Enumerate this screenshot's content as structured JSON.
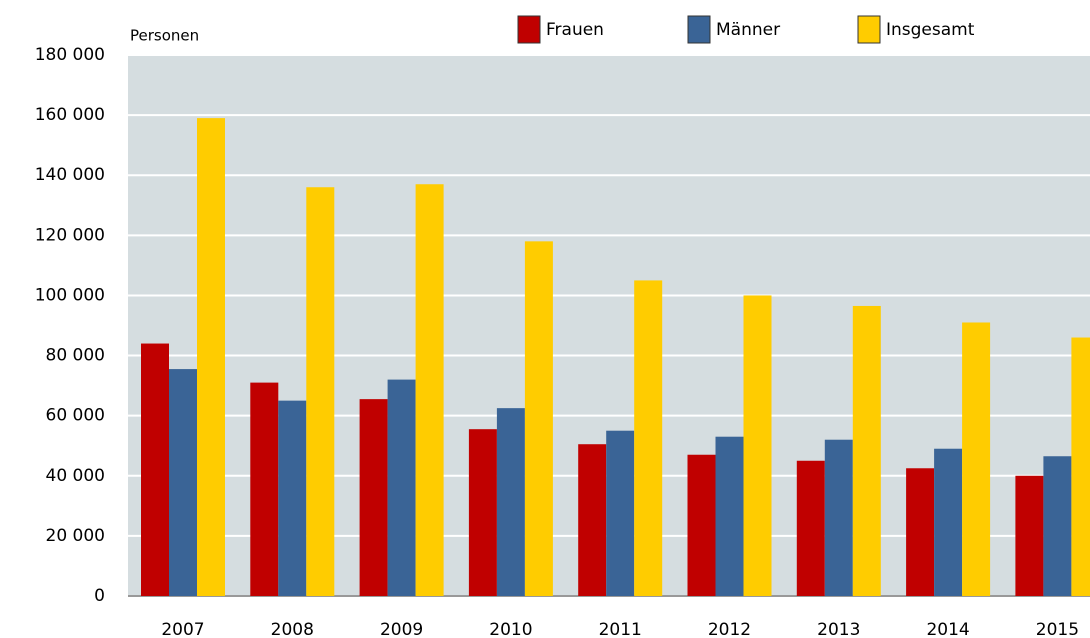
{
  "chart_data": {
    "type": "bar",
    "y_axis_label": "Personen",
    "categories": [
      "2007",
      "2008",
      "2009",
      "2010",
      "2011",
      "2012",
      "2013",
      "2014",
      "2015"
    ],
    "series": [
      {
        "name": "Frauen",
        "color": "#c00000",
        "values": [
          84000,
          71000,
          65500,
          55500,
          50500,
          47000,
          45000,
          42500,
          40000
        ]
      },
      {
        "name": "Männer",
        "color": "#3a6496",
        "values": [
          75500,
          65000,
          72000,
          62500,
          55000,
          53000,
          52000,
          49000,
          46500
        ]
      },
      {
        "name": "Insgesamt",
        "color": "#ffcc00",
        "values": [
          159000,
          136000,
          137000,
          118000,
          105000,
          100000,
          96500,
          91000,
          86000
        ]
      }
    ],
    "ylim": [
      0,
      180000
    ],
    "yticks": [
      0,
      {
        "value": 20000,
        "label": "20 000"
      },
      {
        "value": 40000,
        "label": "40 000"
      },
      {
        "value": 60000,
        "label": "60 000"
      },
      {
        "value": 80000,
        "label": "80 000"
      },
      {
        "value": 100000,
        "label": "100 000"
      },
      {
        "value": 120000,
        "label": "120 000"
      },
      {
        "value": 140000,
        "label": "140 000"
      },
      {
        "value": 160000,
        "label": "160 000"
      },
      {
        "value": 180000,
        "label": "180 000"
      }
    ],
    "grid": true,
    "legend": "top"
  }
}
